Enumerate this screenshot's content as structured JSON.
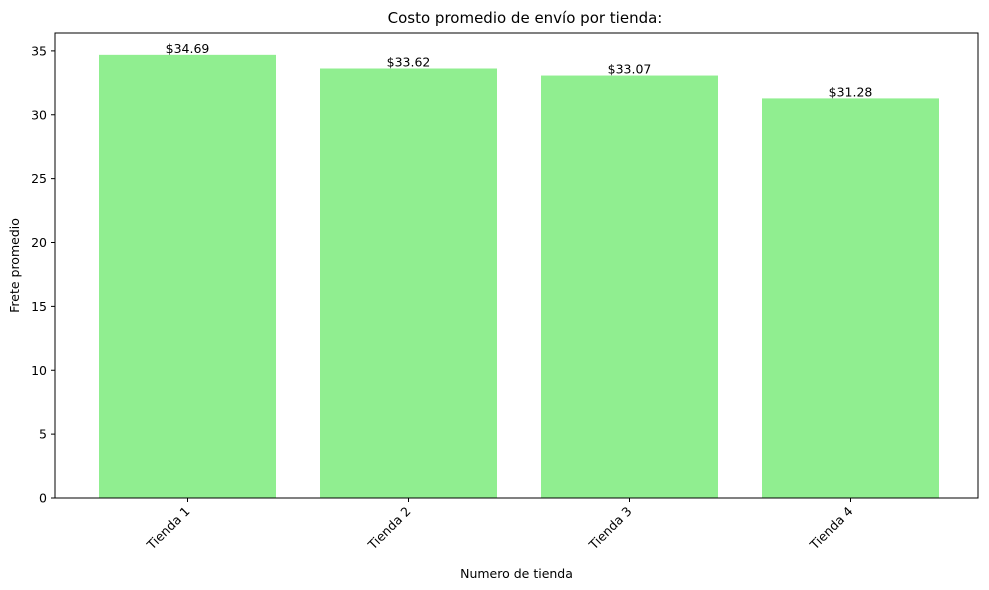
{
  "chart_data": {
    "type": "bar",
    "title": "Costo promedio de envío por tienda:",
    "xlabel": "Numero de tienda",
    "ylabel": "Frete promedio",
    "categories": [
      "Tienda 1",
      "Tienda 2",
      "Tienda 3",
      "Tienda 4"
    ],
    "values": [
      34.69,
      33.62,
      33.07,
      31.28
    ],
    "data_labels": [
      "$34.69",
      "$33.62",
      "$33.07",
      "$31.28"
    ],
    "ylim": [
      0,
      36.4
    ],
    "yticks": [
      0,
      5,
      10,
      15,
      20,
      25,
      30,
      35
    ],
    "ytick_labels": [
      "0",
      "5",
      "10",
      "15",
      "20",
      "25",
      "30",
      "35"
    ],
    "bar_color": "#90ee90",
    "grid": false,
    "legend": "none"
  }
}
